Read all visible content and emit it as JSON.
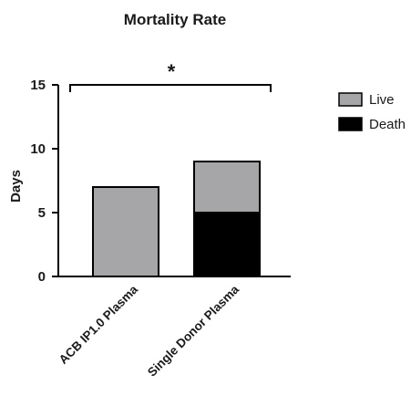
{
  "chart_data": {
    "type": "bar",
    "stacked": true,
    "title": "Mortality  Rate",
    "xlabel": "",
    "ylabel": "Days",
    "ylim": [
      0,
      15
    ],
    "yticks": [
      0,
      5,
      10,
      15
    ],
    "grid": false,
    "legend_position": "right",
    "categories": [
      "ACB IP1.0 Plasma",
      "Single Donor Plasma"
    ],
    "series": [
      {
        "name": "Death",
        "color": "#000000",
        "values": [
          0,
          5
        ]
      },
      {
        "name": "Live",
        "color": "#a6a6a8",
        "values": [
          7,
          4
        ]
      }
    ],
    "legend": [
      {
        "label": "Live",
        "color": "#a6a6a8"
      },
      {
        "label": "Death",
        "color": "#000000"
      }
    ],
    "annotations": [
      {
        "text": "*",
        "type": "significance-bracket",
        "from_category": 0,
        "to_category": 1
      }
    ]
  }
}
